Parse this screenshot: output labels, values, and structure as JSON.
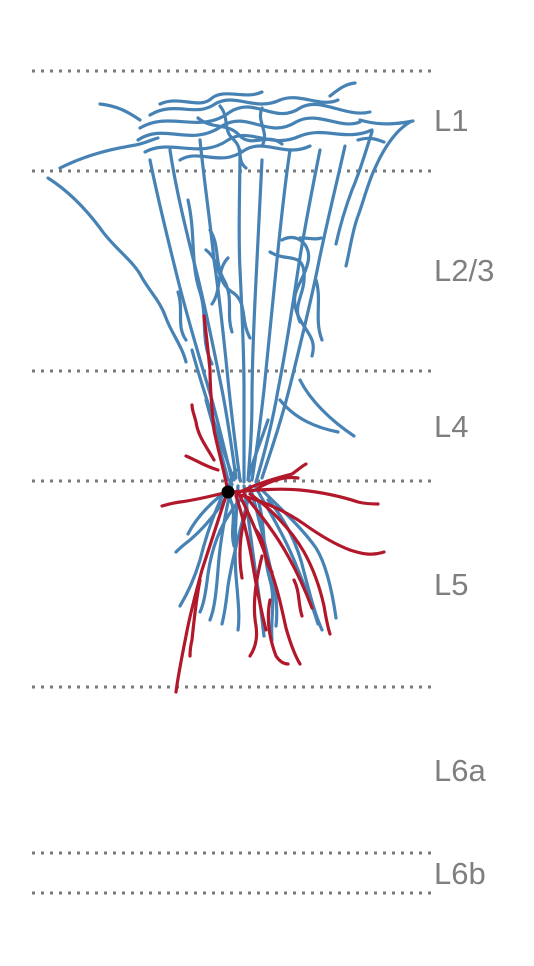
{
  "layers": [
    {
      "id": "l1",
      "label": "L1"
    },
    {
      "id": "l23",
      "label": "L2/3"
    },
    {
      "id": "l4",
      "label": "L4"
    },
    {
      "id": "l5",
      "label": "L5"
    },
    {
      "id": "l6a",
      "label": "L6a"
    },
    {
      "id": "l6b",
      "label": "L6b"
    }
  ],
  "colors": {
    "axon": "#4682b4",
    "dendrite": "#b2182b",
    "soma": "#000000",
    "boundary": "#7a7a7a",
    "label": "#7f7f7f"
  }
}
